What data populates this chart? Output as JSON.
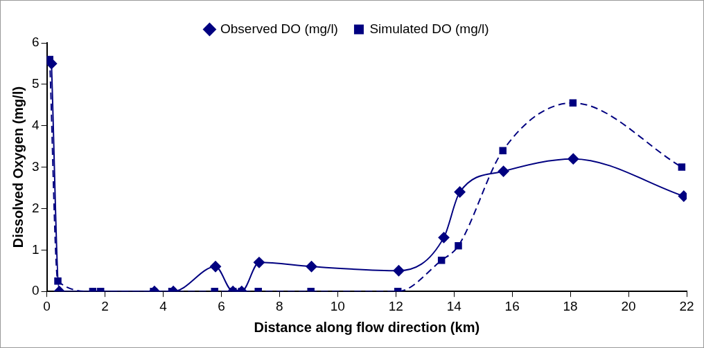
{
  "chart_data": {
    "type": "line",
    "xlabel": "Distance along flow direction (km)",
    "ylabel": "Dissolved Oxygen (mg/l)",
    "xlim": [
      0,
      22
    ],
    "xticks": [
      0,
      2,
      4,
      6,
      8,
      10,
      12,
      14,
      16,
      18,
      20,
      22
    ],
    "ylim": [
      0,
      6
    ],
    "yticks": [
      0,
      1,
      2,
      3,
      4,
      5,
      6
    ],
    "grid": false,
    "legend": "top",
    "series": [
      {
        "name": "Observed DO (mg/l)",
        "color": "#000080",
        "marker": "diamond",
        "line_style": "solid",
        "x": [
          0.16,
          0.43,
          3.7,
          4.35,
          5.8,
          6.4,
          6.7,
          7.3,
          9.1,
          12.1,
          13.65,
          14.2,
          15.7,
          18.1,
          21.9
        ],
        "values": [
          5.5,
          0,
          0,
          0,
          0.6,
          0,
          0,
          0.7,
          0.6,
          0.5,
          1.3,
          2.4,
          2.9,
          3.2,
          2.3
        ]
      },
      {
        "name": "Simulated DO (mg/l)",
        "color": "#000080",
        "marker": "square",
        "line_style": "dashed",
        "x": [
          0.1,
          0.38,
          1.58,
          1.85,
          3.67,
          4.3,
          5.77,
          6.4,
          6.7,
          7.27,
          9.08,
          12.07,
          13.57,
          14.15,
          15.68,
          18.09,
          21.83
        ],
        "values": [
          5.6,
          0.25,
          0,
          0,
          0,
          0,
          0,
          0,
          0,
          0,
          0,
          0,
          0.75,
          1.1,
          3.4,
          4.55,
          3.0
        ]
      }
    ]
  }
}
